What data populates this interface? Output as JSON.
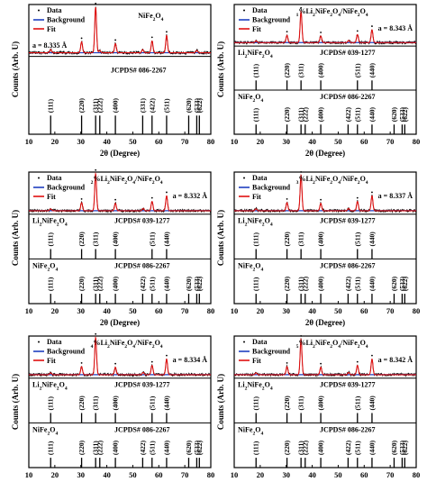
{
  "figure": {
    "xlabel": "2θ (Degree)",
    "ylabel": "Counts (Arb. U)",
    "legend": [
      "Data",
      "Background",
      "Fit"
    ],
    "xlim": [
      10,
      80
    ],
    "xticks": [
      10,
      20,
      30,
      40,
      50,
      60,
      70,
      80
    ],
    "colors": {
      "data": "#000000",
      "background": "#1f3fbf",
      "fit": "#e01010"
    }
  },
  "chart_data": [
    {
      "type": "line",
      "title": "NiFe2O4",
      "lattice": "a = 8.335 Å",
      "xlim": [
        10,
        80
      ],
      "series": [
        {
          "name": "Data",
          "peaks": [
            [
              18.4,
              0.07
            ],
            [
              30.3,
              0.24
            ],
            [
              35.7,
              1.0
            ],
            [
              37.3,
              0.05
            ],
            [
              43.3,
              0.2
            ],
            [
              53.8,
              0.07
            ],
            [
              57.4,
              0.26
            ],
            [
              63.0,
              0.38
            ],
            [
              74.6,
              0.05
            ]
          ]
        },
        {
          "name": "Background",
          "level": 0.02
        },
        {
          "name": "Fit",
          "peaks": [
            [
              18.4,
              0.07
            ],
            [
              30.3,
              0.24
            ],
            [
              35.7,
              1.0
            ],
            [
              37.3,
              0.05
            ],
            [
              43.3,
              0.2
            ],
            [
              53.8,
              0.07
            ],
            [
              57.4,
              0.26
            ],
            [
              63.0,
              0.38
            ],
            [
              74.6,
              0.05
            ]
          ]
        }
      ],
      "reference_sets": [
        {
          "label": "JCPDS# 086-2267",
          "reflections": [
            [
              18.4,
              "(111)"
            ],
            [
              30.3,
              "(220)"
            ],
            [
              35.7,
              "(311)"
            ],
            [
              37.3,
              "(222)"
            ],
            [
              43.3,
              "(400)"
            ],
            [
              53.8,
              "(331)"
            ],
            [
              57.4,
              "(422)"
            ],
            [
              63.0,
              "(511)"
            ],
            [
              71.5,
              "(620)"
            ],
            [
              74.6,
              "(533)"
            ],
            [
              75.6,
              "(622)"
            ]
          ]
        }
      ]
    },
    {
      "type": "line",
      "title": "1%Li2NiFe2O4/NiFe2O4",
      "lattice": "a = 8.343 Å",
      "xlim": [
        10,
        80
      ],
      "series": [
        {
          "name": "Data",
          "peaks": [
            [
              18.4,
              0.05
            ],
            [
              30.3,
              0.2
            ],
            [
              35.7,
              0.85
            ],
            [
              43.3,
              0.18
            ],
            [
              54.0,
              0.06
            ],
            [
              57.4,
              0.22
            ],
            [
              63.0,
              0.35
            ]
          ]
        },
        {
          "name": "Background",
          "level": 0.02
        },
        {
          "name": "Fit",
          "peaks": [
            [
              18.4,
              0.05
            ],
            [
              30.3,
              0.2
            ],
            [
              35.7,
              0.85
            ],
            [
              43.3,
              0.18
            ],
            [
              54.0,
              0.06
            ],
            [
              57.4,
              0.22
            ],
            [
              63.0,
              0.35
            ]
          ]
        }
      ],
      "reference_sets": [
        {
          "label": "JCPDS# 039-1277",
          "phase": "Li2NiFe2O4",
          "reflections": [
            [
              18.4,
              "(111)"
            ],
            [
              30.3,
              "(220)"
            ],
            [
              35.7,
              "(311)"
            ],
            [
              43.3,
              "(400)"
            ],
            [
              57.4,
              "(511)"
            ],
            [
              63.0,
              "(440)"
            ]
          ]
        },
        {
          "label": "JCPDS# 086-2267",
          "phase": "NiFe2O4",
          "reflections": [
            [
              18.4,
              "(111)"
            ],
            [
              30.3,
              "(220)"
            ],
            [
              35.7,
              "(311)"
            ],
            [
              37.3,
              "(222)"
            ],
            [
              43.3,
              "(400)"
            ],
            [
              53.8,
              "(422)"
            ],
            [
              57.4,
              "(511)"
            ],
            [
              63.0,
              "(440)"
            ],
            [
              71.5,
              "(620)"
            ],
            [
              74.6,
              "(533)"
            ],
            [
              75.6,
              "(622)"
            ]
          ]
        }
      ]
    },
    {
      "type": "line",
      "title": "2%Li2NiFe2O4/NiFe2O4",
      "lattice": "a = 8.332 Å",
      "xlim": [
        10,
        80
      ],
      "series": [
        {
          "name": "Data",
          "peaks": [
            [
              18.4,
              0.05
            ],
            [
              30.3,
              0.22
            ],
            [
              35.7,
              1.0
            ],
            [
              43.3,
              0.2
            ],
            [
              54.0,
              0.06
            ],
            [
              57.4,
              0.25
            ],
            [
              63.0,
              0.4
            ]
          ]
        },
        {
          "name": "Background",
          "level": 0.02
        },
        {
          "name": "Fit",
          "peaks": [
            [
              18.4,
              0.05
            ],
            [
              30.3,
              0.22
            ],
            [
              35.7,
              1.0
            ],
            [
              43.3,
              0.2
            ],
            [
              54.0,
              0.06
            ],
            [
              57.4,
              0.25
            ],
            [
              63.0,
              0.4
            ]
          ]
        }
      ],
      "reference_sets": [
        {
          "label": "JCPDS# 039-1277",
          "phase": "Li2NiFe2O4",
          "reflections": [
            [
              18.4,
              "(111)"
            ],
            [
              30.3,
              "(220)"
            ],
            [
              35.7,
              "(311)"
            ],
            [
              43.3,
              "(400)"
            ],
            [
              57.4,
              "(511)"
            ],
            [
              63.0,
              "(440)"
            ]
          ]
        },
        {
          "label": "JCPDS# 086-2267",
          "phase": "NiFe2O4",
          "reflections": [
            [
              18.4,
              "(111)"
            ],
            [
              30.3,
              "(220)"
            ],
            [
              35.7,
              "(311)"
            ],
            [
              37.3,
              "(222)"
            ],
            [
              43.3,
              "(400)"
            ],
            [
              53.8,
              "(422)"
            ],
            [
              57.4,
              "(511)"
            ],
            [
              63.0,
              "(440)"
            ],
            [
              71.5,
              "(620)"
            ],
            [
              74.6,
              "(533)"
            ],
            [
              75.6,
              "(622)"
            ]
          ]
        }
      ]
    },
    {
      "type": "line",
      "title": "3%Li2NiFe2O4/NiFe2O4",
      "lattice": "a = 8.337 Å",
      "xlim": [
        10,
        80
      ],
      "series": [
        {
          "name": "Data",
          "peaks": [
            [
              18.4,
              0.05
            ],
            [
              30.3,
              0.22
            ],
            [
              35.7,
              0.95
            ],
            [
              43.3,
              0.2
            ],
            [
              54.0,
              0.06
            ],
            [
              57.4,
              0.25
            ],
            [
              63.0,
              0.4
            ]
          ]
        },
        {
          "name": "Background",
          "level": 0.02
        },
        {
          "name": "Fit",
          "peaks": [
            [
              18.4,
              0.05
            ],
            [
              30.3,
              0.22
            ],
            [
              35.7,
              0.95
            ],
            [
              43.3,
              0.2
            ],
            [
              54.0,
              0.06
            ],
            [
              57.4,
              0.25
            ],
            [
              63.0,
              0.4
            ]
          ]
        }
      ],
      "reference_sets": [
        {
          "label": "JCPDS# 039-1277",
          "phase": "Li2NiFe2O4",
          "reflections": [
            [
              18.4,
              "(111)"
            ],
            [
              30.3,
              "(220)"
            ],
            [
              35.7,
              "(311)"
            ],
            [
              43.3,
              "(400)"
            ],
            [
              57.4,
              "(511)"
            ],
            [
              63.0,
              "(440)"
            ]
          ]
        },
        {
          "label": "JCPDS# 086-2267",
          "phase": "NiFe2O4",
          "reflections": [
            [
              18.4,
              "(111)"
            ],
            [
              30.3,
              "(220)"
            ],
            [
              35.7,
              "(311)"
            ],
            [
              37.3,
              "(222)"
            ],
            [
              43.3,
              "(400)"
            ],
            [
              53.8,
              "(422)"
            ],
            [
              57.4,
              "(511)"
            ],
            [
              63.0,
              "(440)"
            ],
            [
              71.5,
              "(620)"
            ],
            [
              74.6,
              "(533)"
            ],
            [
              75.6,
              "(622)"
            ]
          ]
        }
      ]
    },
    {
      "type": "line",
      "title": "4%Li2NiFe2O4/NiFe2O4",
      "lattice": "a = 8.334 Å",
      "xlim": [
        10,
        80
      ],
      "series": [
        {
          "name": "Data",
          "peaks": [
            [
              18.4,
              0.05
            ],
            [
              30.3,
              0.22
            ],
            [
              35.7,
              1.0
            ],
            [
              43.3,
              0.2
            ],
            [
              54.0,
              0.06
            ],
            [
              57.4,
              0.25
            ],
            [
              63.0,
              0.42
            ]
          ]
        },
        {
          "name": "Background",
          "level": 0.02
        },
        {
          "name": "Fit",
          "peaks": [
            [
              18.4,
              0.05
            ],
            [
              30.3,
              0.22
            ],
            [
              35.7,
              1.0
            ],
            [
              43.3,
              0.2
            ],
            [
              54.0,
              0.06
            ],
            [
              57.4,
              0.25
            ],
            [
              63.0,
              0.42
            ]
          ]
        }
      ],
      "reference_sets": [
        {
          "label": "JCPDS# 039-1277",
          "phase": "Li2NiFe2O4",
          "reflections": [
            [
              18.4,
              "(111)"
            ],
            [
              30.3,
              "(220)"
            ],
            [
              35.7,
              "(311)"
            ],
            [
              43.3,
              "(400)"
            ],
            [
              57.4,
              "(511)"
            ],
            [
              63.0,
              "(440)"
            ]
          ]
        },
        {
          "label": "JCPDS# 086-2267",
          "phase": "NiFe2O4",
          "reflections": [
            [
              18.4,
              "(111)"
            ],
            [
              30.3,
              "(220)"
            ],
            [
              35.7,
              "(311)"
            ],
            [
              37.3,
              "(222)"
            ],
            [
              43.3,
              "(400)"
            ],
            [
              53.8,
              "(422)"
            ],
            [
              57.4,
              "(511)"
            ],
            [
              63.0,
              "(440)"
            ],
            [
              71.5,
              "(620)"
            ],
            [
              74.6,
              "(533)"
            ],
            [
              75.6,
              "(622)"
            ]
          ]
        }
      ]
    },
    {
      "type": "line",
      "title": "5%Li2NiFe2O4/NiFe2O4",
      "lattice": "a = 8.342 Å",
      "xlim": [
        10,
        80
      ],
      "series": [
        {
          "name": "Data",
          "peaks": [
            [
              18.4,
              0.05
            ],
            [
              30.3,
              0.22
            ],
            [
              35.7,
              0.95
            ],
            [
              43.3,
              0.2
            ],
            [
              54.0,
              0.06
            ],
            [
              57.4,
              0.25
            ],
            [
              63.0,
              0.42
            ]
          ]
        },
        {
          "name": "Background",
          "level": 0.02
        },
        {
          "name": "Fit",
          "peaks": [
            [
              18.4,
              0.05
            ],
            [
              30.3,
              0.22
            ],
            [
              35.7,
              0.95
            ],
            [
              43.3,
              0.2
            ],
            [
              54.0,
              0.06
            ],
            [
              57.4,
              0.25
            ],
            [
              63.0,
              0.42
            ]
          ]
        }
      ],
      "reference_sets": [
        {
          "label": "JCPDS# 039-1277",
          "phase": "Li2NiFe2O4",
          "reflections": [
            [
              18.4,
              "(111)"
            ],
            [
              30.3,
              "(220)"
            ],
            [
              35.7,
              "(311)"
            ],
            [
              43.3,
              "(400)"
            ],
            [
              57.4,
              "(511)"
            ],
            [
              63.0,
              "(440)"
            ]
          ]
        },
        {
          "label": "JCPDS# 086-2267",
          "phase": "NiFe2O4",
          "reflections": [
            [
              18.4,
              "(111)"
            ],
            [
              30.3,
              "(220)"
            ],
            [
              35.7,
              "(311)"
            ],
            [
              37.3,
              "(222)"
            ],
            [
              43.3,
              "(400)"
            ],
            [
              53.8,
              "(422)"
            ],
            [
              57.4,
              "(511)"
            ],
            [
              63.0,
              "(440)"
            ],
            [
              71.5,
              "(620)"
            ],
            [
              74.6,
              "(533)"
            ],
            [
              75.6,
              "(622)"
            ]
          ]
        }
      ]
    }
  ]
}
